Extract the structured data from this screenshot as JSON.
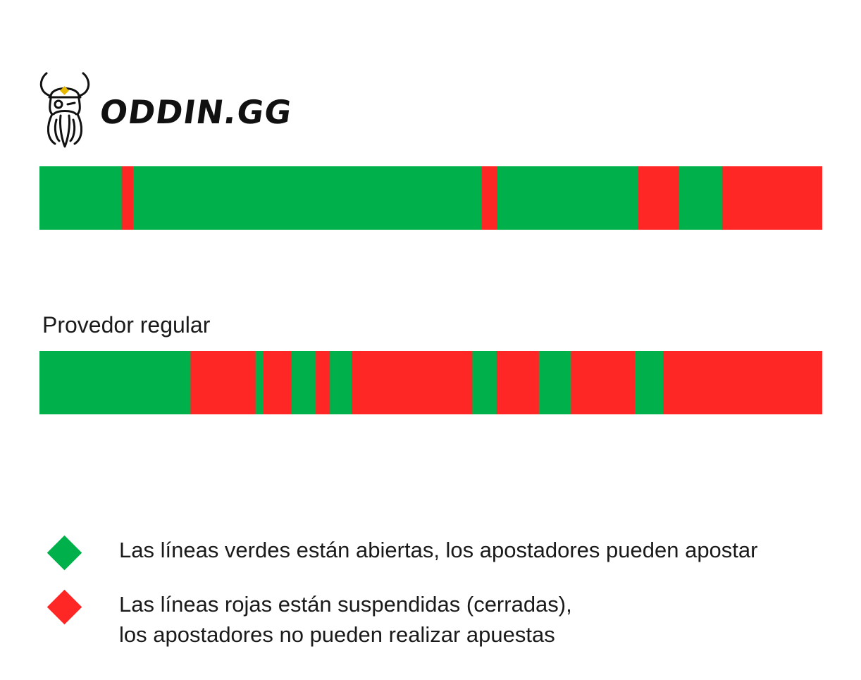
{
  "brand": {
    "name": "ODDIN.GG",
    "logo_icon": "viking-head-icon"
  },
  "colors": {
    "open": "#00b14b",
    "suspended": "#ff2626"
  },
  "chart_data": [
    {
      "type": "bar",
      "name": "",
      "x_range": [
        0,
        100
      ],
      "segments": [
        {
          "status": "open",
          "start": 0,
          "end": 10.5
        },
        {
          "status": "suspended",
          "start": 10.5,
          "end": 12.0
        },
        {
          "status": "open",
          "start": 12.0,
          "end": 56.5
        },
        {
          "status": "suspended",
          "start": 56.5,
          "end": 58.5
        },
        {
          "status": "open",
          "start": 58.5,
          "end": 76.5
        },
        {
          "status": "suspended",
          "start": 76.5,
          "end": 81.7
        },
        {
          "status": "open",
          "start": 81.7,
          "end": 87.2
        },
        {
          "status": "suspended",
          "start": 87.2,
          "end": 100
        }
      ]
    },
    {
      "type": "bar",
      "name": "Provedor regular",
      "x_range": [
        0,
        100
      ],
      "segments": [
        {
          "status": "open",
          "start": 0,
          "end": 19.3
        },
        {
          "status": "suspended",
          "start": 19.3,
          "end": 27.6
        },
        {
          "status": "open",
          "start": 27.6,
          "end": 28.6
        },
        {
          "status": "suspended",
          "start": 28.6,
          "end": 32.2
        },
        {
          "status": "open",
          "start": 32.2,
          "end": 35.3
        },
        {
          "status": "suspended",
          "start": 35.3,
          "end": 37.1
        },
        {
          "status": "open",
          "start": 37.1,
          "end": 39.9
        },
        {
          "status": "suspended",
          "start": 39.9,
          "end": 55.3
        },
        {
          "status": "open",
          "start": 55.3,
          "end": 58.4
        },
        {
          "status": "suspended",
          "start": 58.4,
          "end": 63.8
        },
        {
          "status": "open",
          "start": 63.8,
          "end": 67.9
        },
        {
          "status": "suspended",
          "start": 67.9,
          "end": 76.1
        },
        {
          "status": "open",
          "start": 76.1,
          "end": 79.7
        },
        {
          "status": "suspended",
          "start": 79.7,
          "end": 100
        }
      ]
    }
  ],
  "legend": [
    {
      "status": "open",
      "lines": [
        "Las líneas verdes están abiertas, los apostadores pueden apostar"
      ]
    },
    {
      "status": "suspended",
      "lines": [
        "Las líneas rojas están suspendidas (cerradas),",
        "los apostadores no pueden realizar apuestas"
      ]
    }
  ]
}
